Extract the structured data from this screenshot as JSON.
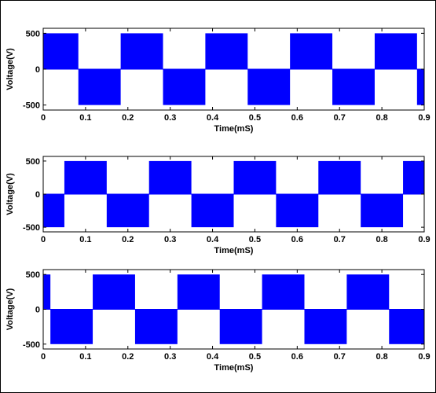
{
  "colors": {
    "series": "#0000ff",
    "axes": "#000000",
    "background": "#ffffff"
  },
  "chart_data": [
    {
      "type": "line",
      "xlabel": "Time(mS)",
      "ylabel": "Voltage(V)",
      "xlim": [
        0,
        0.9
      ],
      "ylim": [
        -570,
        570
      ],
      "xticks": [
        "0",
        "0.1",
        "0.2",
        "0.3",
        "0.4",
        "0.5",
        "0.6",
        "0.7",
        "0.8",
        "0.9"
      ],
      "yticks": [
        500,
        0,
        -500
      ],
      "grid": false,
      "pulse_level": 500,
      "positive_intervals": [
        [
          0,
          0.083
        ],
        [
          0.183,
          0.283
        ],
        [
          0.383,
          0.483
        ],
        [
          0.583,
          0.683
        ],
        [
          0.783,
          0.883
        ]
      ],
      "negative_intervals": [
        [
          0.083,
          0.183
        ],
        [
          0.283,
          0.383
        ],
        [
          0.483,
          0.583
        ],
        [
          0.683,
          0.783
        ],
        [
          0.883,
          0.9
        ]
      ]
    },
    {
      "type": "line",
      "xlabel": "Time(mS)",
      "ylabel": "Voltage(V)",
      "xlim": [
        0,
        0.9
      ],
      "ylim": [
        -570,
        570
      ],
      "xticks": [
        "0",
        "0.1",
        "0.2",
        "0.3",
        "0.4",
        "0.5",
        "0.6",
        "0.7",
        "0.8",
        "0.9"
      ],
      "yticks": [
        500,
        0,
        -500
      ],
      "grid": false,
      "pulse_level": 500,
      "positive_intervals": [
        [
          0.05,
          0.15
        ],
        [
          0.25,
          0.35
        ],
        [
          0.45,
          0.55
        ],
        [
          0.65,
          0.75
        ],
        [
          0.85,
          0.9
        ]
      ],
      "negative_intervals": [
        [
          0,
          0.05
        ],
        [
          0.15,
          0.25
        ],
        [
          0.35,
          0.45
        ],
        [
          0.55,
          0.65
        ],
        [
          0.75,
          0.85
        ]
      ]
    },
    {
      "type": "line",
      "xlabel": "Time(mS)",
      "ylabel": "Voltage(V)",
      "xlim": [
        0,
        0.9
      ],
      "ylim": [
        -570,
        570
      ],
      "xticks": [
        "0",
        "0.1",
        "0.2",
        "0.3",
        "0.4",
        "0.5",
        "0.6",
        "0.7",
        "0.8",
        "0.9"
      ],
      "yticks": [
        500,
        0,
        -500
      ],
      "grid": false,
      "pulse_level": 500,
      "positive_intervals": [
        [
          0,
          0.017
        ],
        [
          0.117,
          0.217
        ],
        [
          0.317,
          0.417
        ],
        [
          0.517,
          0.617
        ],
        [
          0.717,
          0.817
        ]
      ],
      "negative_intervals": [
        [
          0.017,
          0.117
        ],
        [
          0.217,
          0.317
        ],
        [
          0.417,
          0.517
        ],
        [
          0.617,
          0.717
        ],
        [
          0.817,
          0.9
        ]
      ]
    }
  ]
}
